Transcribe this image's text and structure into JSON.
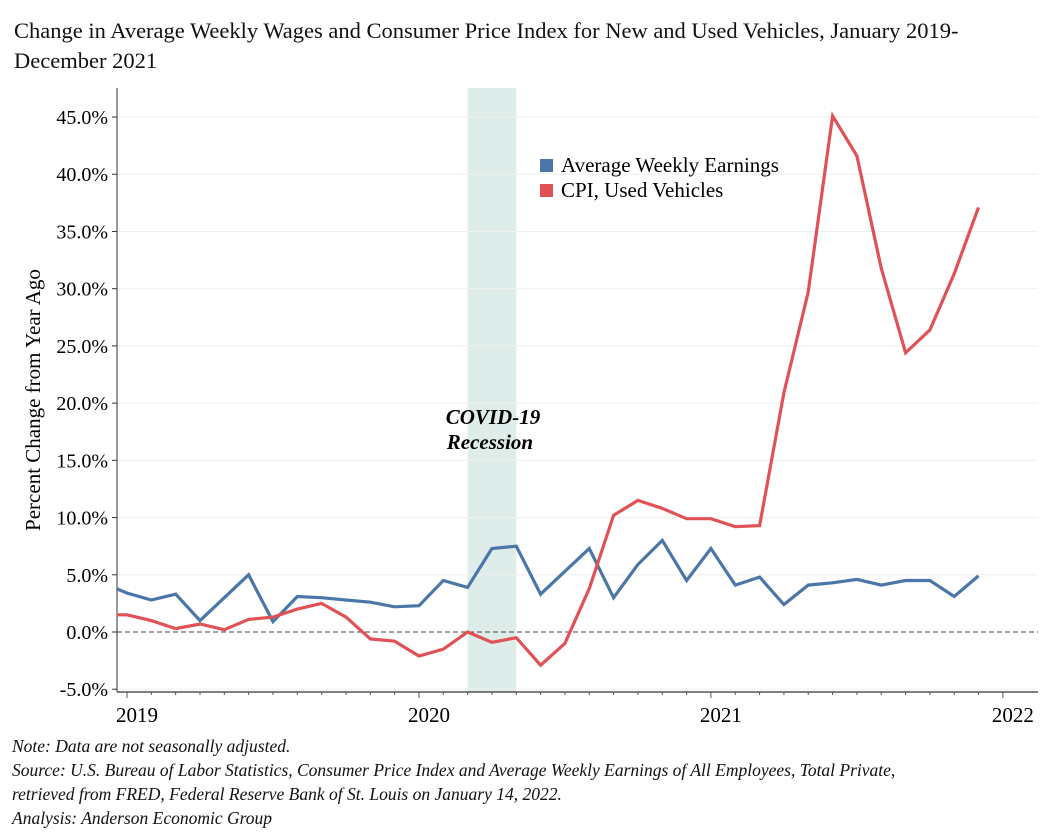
{
  "chart_data": {
    "type": "line",
    "title": "Change in Average Weekly Wages and Consumer Price Index for New and Used Vehicles, January 2019-December 2021",
    "ylabel": "Percent Change from Year Ago",
    "xlabel": "",
    "ylim": [
      -5.5,
      47.5
    ],
    "yticks": [
      "-5.0%",
      "0.0%",
      "5.0%",
      "10.0%",
      "15.0%",
      "20.0%",
      "25.0%",
      "30.0%",
      "35.0%",
      "40.0%",
      "45.0%"
    ],
    "ytick_values": [
      -5,
      0,
      5,
      10,
      15,
      20,
      25,
      30,
      35,
      40,
      45
    ],
    "xticks": [
      "2019",
      "2020",
      "2021",
      "2022"
    ],
    "grid": "horizontal",
    "legend": "top-center",
    "x": [
      "2018-12",
      "2019-01",
      "2019-02",
      "2019-03",
      "2019-04",
      "2019-05",
      "2019-06",
      "2019-07",
      "2019-08",
      "2019-09",
      "2019-10",
      "2019-11",
      "2019-12",
      "2020-01",
      "2020-02",
      "2020-03",
      "2020-04",
      "2020-05",
      "2020-06",
      "2020-07",
      "2020-08",
      "2020-09",
      "2020-10",
      "2020-11",
      "2020-12",
      "2021-01",
      "2021-02",
      "2021-03",
      "2021-04",
      "2021-05",
      "2021-06",
      "2021-07",
      "2021-08",
      "2021-09",
      "2021-10",
      "2021-11",
      "2021-12"
    ],
    "series": [
      {
        "name": "Average Weekly Earnings",
        "color": "#4a76a8",
        "values": [
          4.3,
          3.4,
          2.8,
          3.3,
          1.0,
          3.0,
          5.0,
          0.9,
          3.1,
          3.0,
          2.8,
          2.6,
          2.2,
          2.3,
          4.5,
          3.9,
          7.3,
          7.5,
          3.3,
          5.3,
          7.3,
          3.0,
          5.9,
          8.0,
          4.5,
          7.3,
          4.1,
          4.8,
          2.4,
          4.1,
          4.3,
          4.6,
          4.1,
          4.5,
          4.5,
          3.1,
          4.9
        ]
      },
      {
        "name": "CPI, Used Vehicles",
        "color": "#e05256",
        "values": [
          1.5,
          1.5,
          1.0,
          0.3,
          0.7,
          0.2,
          1.1,
          1.3,
          2.0,
          2.5,
          1.3,
          -0.6,
          -0.8,
          -2.1,
          -1.5,
          0.0,
          -0.9,
          -0.5,
          -2.9,
          -1.0,
          3.8,
          10.2,
          11.5,
          10.8,
          9.9,
          9.9,
          9.2,
          9.3,
          20.9,
          29.7,
          45.1,
          41.6,
          31.8,
          24.4,
          26.4,
          31.3,
          37.1
        ]
      }
    ],
    "annotations": [
      {
        "text_lines": [
          "COVID-19",
          "Recession"
        ],
        "shaded_range": [
          "2020-03",
          "2020-05"
        ],
        "shade_color": "#deede9"
      }
    ],
    "zero_line": "dashed"
  },
  "notes": [
    "Note: Data are not seasonally adjusted.",
    "Source: U.S. Bureau of Labor Statistics, Consumer Price Index and Average Weekly Earnings of All Employees, Total Private,",
    "retrieved from FRED, Federal Reserve Bank of St. Louis on January 14, 2022.",
    "Analysis: Anderson Economic Group"
  ]
}
